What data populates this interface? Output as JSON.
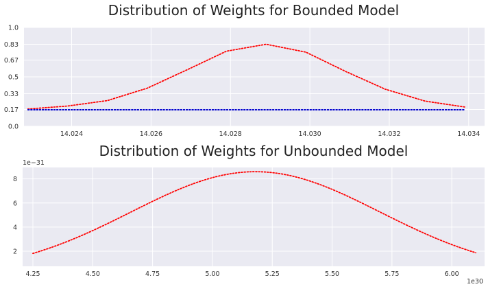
{
  "chart_data": [
    {
      "type": "line",
      "title": "Distribution of Weights for Bounded Model",
      "xlim": [
        14.0228,
        14.0344
      ],
      "ylim": [
        0.0,
        1.0
      ],
      "xticks": [
        14.024,
        14.026,
        14.028,
        14.03,
        14.032,
        14.034
      ],
      "xtick_labels": [
        "14.024",
        "14.026",
        "14.028",
        "14.030",
        "14.032",
        "14.034"
      ],
      "yticks": [
        0.0,
        0.17,
        0.33,
        0.5,
        0.67,
        0.83,
        1.0
      ],
      "ytick_labels": [
        "0.0",
        "0.17",
        "0.33",
        "0.5",
        "0.67",
        "0.83",
        "1.0"
      ],
      "grid": true,
      "series": [
        {
          "color": "#ff0000",
          "style": "dotted",
          "x": [
            14.0229,
            14.0239,
            14.0249,
            14.0259,
            14.0269,
            14.0279,
            14.0289,
            14.0299,
            14.0309,
            14.0319,
            14.0329,
            14.0339
          ],
          "y": [
            0.175,
            0.205,
            0.26,
            0.385,
            0.57,
            0.76,
            0.83,
            0.75,
            0.555,
            0.375,
            0.255,
            0.195
          ]
        },
        {
          "color": "#0000cc",
          "style": "dotted",
          "x": [
            14.0229,
            14.0339
          ],
          "y": [
            0.167,
            0.167
          ]
        }
      ]
    },
    {
      "type": "line",
      "title": "Distribution of Weights for Unbounded Model",
      "x_offset_label": "1e30",
      "y_offset_label": "1e−31",
      "xlim": [
        4.207,
        6.137
      ],
      "ylim": [
        0.75,
        8.95
      ],
      "xticks": [
        4.25,
        4.5,
        4.75,
        5.0,
        5.25,
        5.5,
        5.75,
        6.0
      ],
      "xtick_labels": [
        "4.25",
        "4.50",
        "4.75",
        "5.00",
        "5.25",
        "5.50",
        "5.75",
        "6.00"
      ],
      "yticks": [
        2,
        4,
        6,
        8
      ],
      "ytick_labels": [
        "2",
        "4",
        "6",
        "8"
      ],
      "grid": true,
      "series": [
        {
          "color": "#ff0000",
          "style": "dotted",
          "curve": "gaussian",
          "x_range": [
            4.25,
            6.1
          ],
          "peak_x": 5.18,
          "peak_y": 8.6,
          "baseline": 0.1,
          "sigma": 0.52
        }
      ]
    }
  ]
}
